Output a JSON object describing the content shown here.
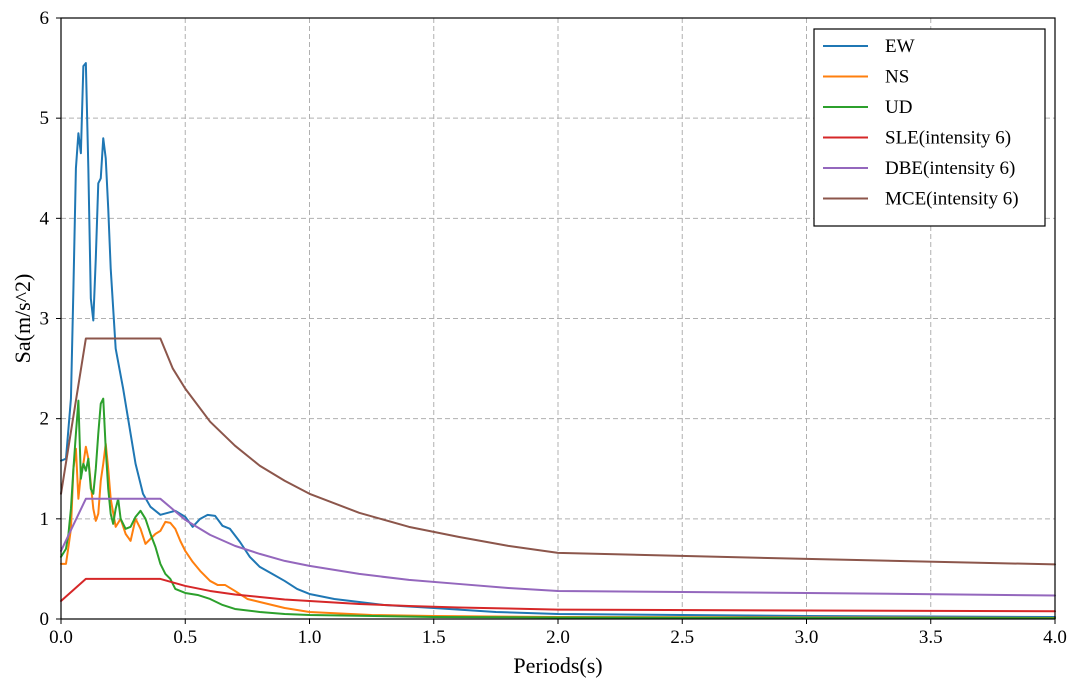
{
  "chart_data": {
    "type": "line",
    "xlabel": "Periods(s)",
    "ylabel": "Sa(m/s^2)",
    "xlim": [
      0,
      4.0
    ],
    "ylim": [
      0,
      6
    ],
    "xticks": [
      "0.0",
      "0.5",
      "1.0",
      "1.5",
      "2.0",
      "2.5",
      "3.0",
      "3.5",
      "4.0"
    ],
    "yticks": [
      "0",
      "1",
      "2",
      "3",
      "4",
      "5",
      "6"
    ],
    "grid": true,
    "legend_position": "top-right",
    "series": [
      {
        "name": "EW",
        "color": "#1f77b4",
        "points": [
          [
            0,
            1.58
          ],
          [
            0.02,
            1.6
          ],
          [
            0.04,
            2.2
          ],
          [
            0.05,
            3.3
          ],
          [
            0.06,
            4.5
          ],
          [
            0.07,
            4.85
          ],
          [
            0.08,
            4.65
          ],
          [
            0.09,
            5.52
          ],
          [
            0.1,
            5.55
          ],
          [
            0.11,
            4.5
          ],
          [
            0.12,
            3.2
          ],
          [
            0.13,
            2.98
          ],
          [
            0.14,
            3.6
          ],
          [
            0.15,
            4.35
          ],
          [
            0.16,
            4.4
          ],
          [
            0.17,
            4.8
          ],
          [
            0.18,
            4.6
          ],
          [
            0.19,
            4.1
          ],
          [
            0.2,
            3.5
          ],
          [
            0.22,
            2.7
          ],
          [
            0.25,
            2.3
          ],
          [
            0.28,
            1.85
          ],
          [
            0.3,
            1.55
          ],
          [
            0.33,
            1.25
          ],
          [
            0.36,
            1.12
          ],
          [
            0.4,
            1.04
          ],
          [
            0.43,
            1.06
          ],
          [
            0.46,
            1.08
          ],
          [
            0.5,
            1.02
          ],
          [
            0.53,
            0.92
          ],
          [
            0.56,
            1.0
          ],
          [
            0.59,
            1.04
          ],
          [
            0.62,
            1.03
          ],
          [
            0.65,
            0.93
          ],
          [
            0.68,
            0.9
          ],
          [
            0.72,
            0.77
          ],
          [
            0.76,
            0.62
          ],
          [
            0.8,
            0.52
          ],
          [
            0.85,
            0.45
          ],
          [
            0.9,
            0.38
          ],
          [
            0.95,
            0.3
          ],
          [
            1.0,
            0.25
          ],
          [
            1.1,
            0.2
          ],
          [
            1.2,
            0.17
          ],
          [
            1.3,
            0.14
          ],
          [
            1.5,
            0.11
          ],
          [
            1.75,
            0.07
          ],
          [
            2.0,
            0.05
          ],
          [
            2.5,
            0.04
          ],
          [
            3.0,
            0.03
          ],
          [
            3.5,
            0.025
          ],
          [
            4.0,
            0.02
          ]
        ]
      },
      {
        "name": "NS",
        "color": "#ff7f0e",
        "points": [
          [
            0,
            0.55
          ],
          [
            0.02,
            0.55
          ],
          [
            0.03,
            0.72
          ],
          [
            0.04,
            0.9
          ],
          [
            0.05,
            1.5
          ],
          [
            0.06,
            1.7
          ],
          [
            0.07,
            1.2
          ],
          [
            0.08,
            1.45
          ],
          [
            0.09,
            1.55
          ],
          [
            0.1,
            1.72
          ],
          [
            0.11,
            1.6
          ],
          [
            0.12,
            1.35
          ],
          [
            0.13,
            1.1
          ],
          [
            0.14,
            0.98
          ],
          [
            0.15,
            1.05
          ],
          [
            0.16,
            1.38
          ],
          [
            0.17,
            1.55
          ],
          [
            0.18,
            1.75
          ],
          [
            0.19,
            1.5
          ],
          [
            0.2,
            1.2
          ],
          [
            0.22,
            0.92
          ],
          [
            0.24,
            1.0
          ],
          [
            0.26,
            0.85
          ],
          [
            0.28,
            0.78
          ],
          [
            0.3,
            1.0
          ],
          [
            0.32,
            0.9
          ],
          [
            0.34,
            0.75
          ],
          [
            0.36,
            0.8
          ],
          [
            0.38,
            0.85
          ],
          [
            0.4,
            0.88
          ],
          [
            0.42,
            0.97
          ],
          [
            0.44,
            0.96
          ],
          [
            0.46,
            0.9
          ],
          [
            0.48,
            0.78
          ],
          [
            0.5,
            0.68
          ],
          [
            0.53,
            0.57
          ],
          [
            0.56,
            0.48
          ],
          [
            0.6,
            0.38
          ],
          [
            0.63,
            0.34
          ],
          [
            0.66,
            0.34
          ],
          [
            0.7,
            0.28
          ],
          [
            0.75,
            0.2
          ],
          [
            0.8,
            0.17
          ],
          [
            0.9,
            0.11
          ],
          [
            1.0,
            0.07
          ],
          [
            1.25,
            0.04
          ],
          [
            1.5,
            0.03
          ],
          [
            2.0,
            0.02
          ],
          [
            3.0,
            0.015
          ],
          [
            4.0,
            0.01
          ]
        ]
      },
      {
        "name": "UD",
        "color": "#2ca02c",
        "points": [
          [
            0,
            0.62
          ],
          [
            0.02,
            0.7
          ],
          [
            0.03,
            0.85
          ],
          [
            0.04,
            1.1
          ],
          [
            0.05,
            1.5
          ],
          [
            0.06,
            1.85
          ],
          [
            0.07,
            2.18
          ],
          [
            0.08,
            1.4
          ],
          [
            0.09,
            1.55
          ],
          [
            0.1,
            1.48
          ],
          [
            0.11,
            1.6
          ],
          [
            0.12,
            1.3
          ],
          [
            0.13,
            1.25
          ],
          [
            0.14,
            1.5
          ],
          [
            0.15,
            1.85
          ],
          [
            0.16,
            2.15
          ],
          [
            0.17,
            2.2
          ],
          [
            0.18,
            1.7
          ],
          [
            0.19,
            1.3
          ],
          [
            0.2,
            1.05
          ],
          [
            0.21,
            0.95
          ],
          [
            0.22,
            1.1
          ],
          [
            0.23,
            1.2
          ],
          [
            0.24,
            1.0
          ],
          [
            0.26,
            0.9
          ],
          [
            0.28,
            0.92
          ],
          [
            0.3,
            1.02
          ],
          [
            0.32,
            1.08
          ],
          [
            0.34,
            1.0
          ],
          [
            0.36,
            0.85
          ],
          [
            0.38,
            0.72
          ],
          [
            0.4,
            0.55
          ],
          [
            0.42,
            0.45
          ],
          [
            0.44,
            0.4
          ],
          [
            0.46,
            0.3
          ],
          [
            0.5,
            0.26
          ],
          [
            0.55,
            0.24
          ],
          [
            0.6,
            0.2
          ],
          [
            0.65,
            0.14
          ],
          [
            0.7,
            0.1
          ],
          [
            0.8,
            0.07
          ],
          [
            0.9,
            0.05
          ],
          [
            1.0,
            0.04
          ],
          [
            1.5,
            0.02
          ],
          [
            2.0,
            0.015
          ],
          [
            3.0,
            0.01
          ],
          [
            4.0,
            0.008
          ]
        ]
      },
      {
        "name": "SLE(intensity 6)",
        "color": "#d62728",
        "points": [
          [
            0,
            0.18
          ],
          [
            0.1,
            0.4
          ],
          [
            0.4,
            0.4
          ],
          [
            0.5,
            0.33
          ],
          [
            0.6,
            0.28
          ],
          [
            0.7,
            0.245
          ],
          [
            0.8,
            0.22
          ],
          [
            0.9,
            0.195
          ],
          [
            1.0,
            0.18
          ],
          [
            1.2,
            0.15
          ],
          [
            1.4,
            0.13
          ],
          [
            1.6,
            0.115
          ],
          [
            1.8,
            0.105
          ],
          [
            2.0,
            0.094
          ],
          [
            3.0,
            0.085
          ],
          [
            4.0,
            0.078
          ]
        ]
      },
      {
        "name": "DBE(intensity 6)",
        "color": "#9467bd",
        "points": [
          [
            0,
            0.68
          ],
          [
            0.1,
            1.2
          ],
          [
            0.4,
            1.2
          ],
          [
            0.5,
            0.99
          ],
          [
            0.6,
            0.84
          ],
          [
            0.7,
            0.73
          ],
          [
            0.8,
            0.65
          ],
          [
            0.9,
            0.58
          ],
          [
            1.0,
            0.53
          ],
          [
            1.2,
            0.45
          ],
          [
            1.4,
            0.39
          ],
          [
            1.6,
            0.35
          ],
          [
            1.8,
            0.31
          ],
          [
            2.0,
            0.28
          ],
          [
            3.0,
            0.26
          ],
          [
            4.0,
            0.235
          ]
        ]
      },
      {
        "name": "MCE(intensity 6)",
        "color": "#8c564b",
        "points": [
          [
            0,
            1.25
          ],
          [
            0.1,
            2.8
          ],
          [
            0.4,
            2.8
          ],
          [
            0.45,
            2.5
          ],
          [
            0.5,
            2.3
          ],
          [
            0.6,
            1.97
          ],
          [
            0.7,
            1.73
          ],
          [
            0.8,
            1.53
          ],
          [
            0.9,
            1.38
          ],
          [
            1.0,
            1.25
          ],
          [
            1.2,
            1.06
          ],
          [
            1.4,
            0.92
          ],
          [
            1.6,
            0.82
          ],
          [
            1.8,
            0.73
          ],
          [
            2.0,
            0.66
          ],
          [
            3.0,
            0.6
          ],
          [
            4.0,
            0.545
          ]
        ]
      }
    ]
  }
}
